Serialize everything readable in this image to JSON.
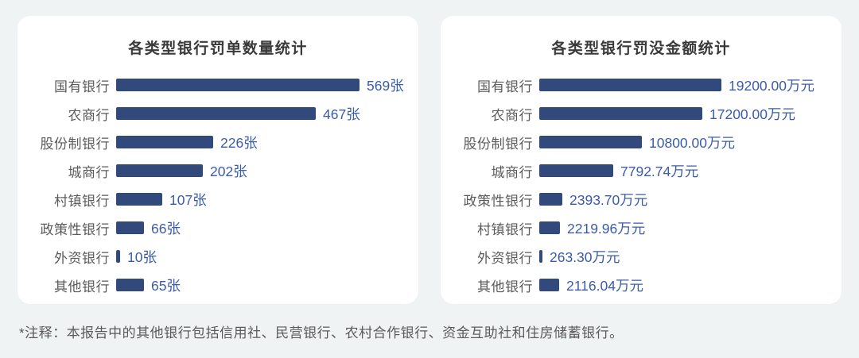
{
  "page": {
    "background": "#F0F3F4",
    "note": "*注释：本报告中的其他银行包括信用社、民营银行、农村合作银行、资金互助社和住房储蓄银行。"
  },
  "chart_data": [
    {
      "type": "bar",
      "orientation": "horizontal",
      "title": "各类型银行罚单数量统计",
      "categories": [
        "国有银行",
        "农商行",
        "股份制银行",
        "城商行",
        "村镇银行",
        "政策性银行",
        "外资银行",
        "其他银行"
      ],
      "values": [
        569,
        467,
        226,
        202,
        107,
        66,
        10,
        65
      ],
      "labels": [
        "569张",
        "467张",
        "226张",
        "202张",
        "107张",
        "66张",
        "10张",
        "65张"
      ],
      "unit": "张",
      "xlim": [
        0,
        569
      ],
      "grid": false,
      "legend": "none",
      "bar_color": "#32497B",
      "value_color": "#3A5CA7"
    },
    {
      "type": "bar",
      "orientation": "horizontal",
      "title": "各类型银行罚没金额统计",
      "categories": [
        "国有银行",
        "农商行",
        "股份制银行",
        "城商行",
        "政策性银行",
        "村镇银行",
        "外资银行",
        "其他银行"
      ],
      "values": [
        19200.0,
        17200.0,
        10800.0,
        7792.74,
        2393.7,
        2219.96,
        263.3,
        2116.04
      ],
      "labels": [
        "19200.00万元",
        "17200.00万元",
        "10800.00万元",
        "7792.74万元",
        "2393.70万元",
        "2219.96万元",
        "263.30万元",
        "2116.04万元"
      ],
      "unit": "万元",
      "xlim": [
        0,
        19200
      ],
      "grid": false,
      "legend": "none",
      "bar_color": "#32497B",
      "value_color": "#3A5CA7"
    }
  ]
}
